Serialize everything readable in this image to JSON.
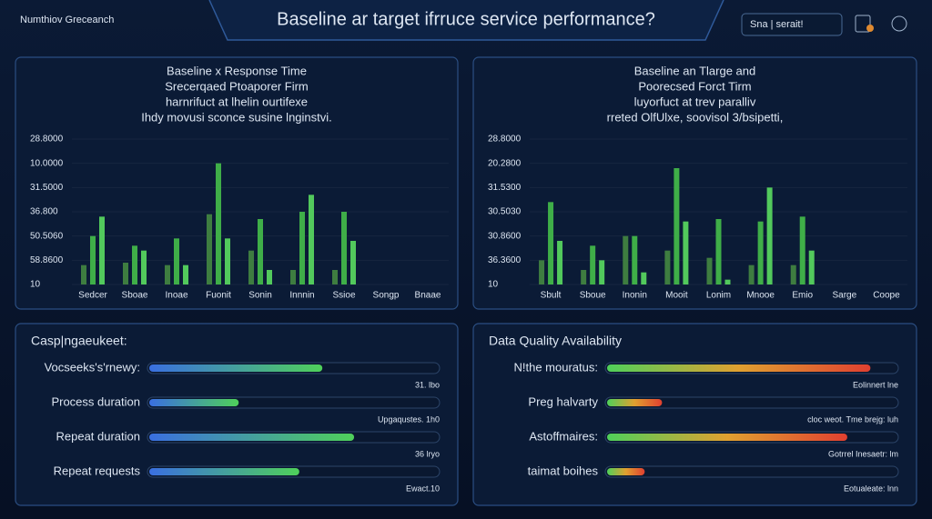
{
  "header": {
    "brand": "Numthiov Greceanch",
    "title": "Baseline ar target ifrruce service performance?",
    "search": "Sna | serait!"
  },
  "panels": [
    {
      "type": "bar",
      "title": [
        "Baseline x Response Time",
        "Srecerqaed Ptoaporer Firm",
        "harnrifuct at lhelin ourtifexe",
        "Ihdy movusi sconce susine lnginstvi."
      ],
      "categories": [
        "Sedcer",
        "Sboae",
        "Inoae",
        "Fuonit",
        "Sonin",
        "Innnin",
        "Ssioe",
        "Songp",
        "Bnaae"
      ],
      "series": [
        {
          "color": "#3e7d40",
          "values": [
            0.8,
            0.9,
            0.8,
            2.9,
            1.4,
            0.6,
            0.6,
            0,
            0
          ]
        },
        {
          "color": "#3fae48",
          "values": [
            2.0,
            1.6,
            1.9,
            5.0,
            2.7,
            3.0,
            3.0,
            0,
            0
          ]
        },
        {
          "color": "#52c95c",
          "values": [
            2.8,
            1.4,
            0.8,
            1.9,
            0.6,
            3.7,
            1.8,
            0,
            0
          ]
        }
      ],
      "ylim": [
        0,
        6
      ],
      "yticks": [
        {
          "value": 0,
          "label": "10"
        },
        {
          "value": 1,
          "label": "58.8600"
        },
        {
          "value": 2,
          "label": "50.5060"
        },
        {
          "value": 3,
          "label": "36.800"
        },
        {
          "value": 4,
          "label": "31.5000"
        },
        {
          "value": 5,
          "label": "10.0000"
        },
        {
          "value": 6,
          "label": "28.8000"
        }
      ]
    },
    {
      "type": "bar",
      "title": [
        "Baseline an Tlarge and",
        "Poorecsed Forct Tirm",
        "luyorfuct at trev paralliv",
        "rreted OlfUlxe, soovisol 3/bsipetti,"
      ],
      "categories": [
        "Sbult",
        "Sboue",
        "Inonin",
        "Mooit",
        "Lonim",
        "Mnooe",
        "Emio",
        "Sarge",
        "Coope"
      ],
      "series": [
        {
          "color": "#3e7d40",
          "values": [
            1.0,
            0.6,
            2.0,
            1.4,
            1.1,
            0.8,
            0.8,
            0,
            0
          ]
        },
        {
          "color": "#3fae48",
          "values": [
            3.4,
            1.6,
            2.0,
            4.8,
            2.7,
            2.6,
            2.8,
            0,
            0
          ]
        },
        {
          "color": "#52c95c",
          "values": [
            1.8,
            1.0,
            0.5,
            2.6,
            0.2,
            4.0,
            1.4,
            0,
            0
          ]
        }
      ],
      "ylim": [
        0,
        6
      ],
      "yticks": [
        {
          "value": 0,
          "label": "10"
        },
        {
          "value": 1,
          "label": "36.3600"
        },
        {
          "value": 2,
          "label": "30.8600"
        },
        {
          "value": 3,
          "label": "30.5030"
        },
        {
          "value": 4,
          "label": "31.5300"
        },
        {
          "value": 5,
          "label": "20.2800"
        },
        {
          "value": 6,
          "label": "28.8000"
        }
      ]
    },
    {
      "type": "progress",
      "title": "Casp|ngaeukeet:",
      "gradient": [
        "#3a6fe0",
        "#4fd05a"
      ],
      "rows": [
        {
          "label": "Vocseeks's'rnewy:",
          "value": 0.6,
          "note": "31. lbo"
        },
        {
          "label": "Process duration",
          "value": 0.31,
          "note": "Upgaqustes. 1h0"
        },
        {
          "label": "Repeat duration",
          "value": 0.71,
          "note": "36 lryo"
        },
        {
          "label": "Repeat requests",
          "value": 0.52,
          "note": "Ewact.10"
        }
      ]
    },
    {
      "type": "progress",
      "title": "Data Quality Availability",
      "gradient": [
        "#4fd05a",
        "#e0a030",
        "#e04030"
      ],
      "rows": [
        {
          "label": "N!the mouratus:",
          "value": 0.91,
          "note": "Eolinnert lne"
        },
        {
          "label": "Preg halvarty",
          "value": 0.19,
          "note": "cloc weot. Tme brejg: luh"
        },
        {
          "label": "Astoffmaires:",
          "value": 0.83,
          "note": "Gotrrel Inesaetr: lm"
        },
        {
          "label": "taimat boihes",
          "value": 0.13,
          "note": "Eotualeate: lnn"
        }
      ]
    }
  ]
}
